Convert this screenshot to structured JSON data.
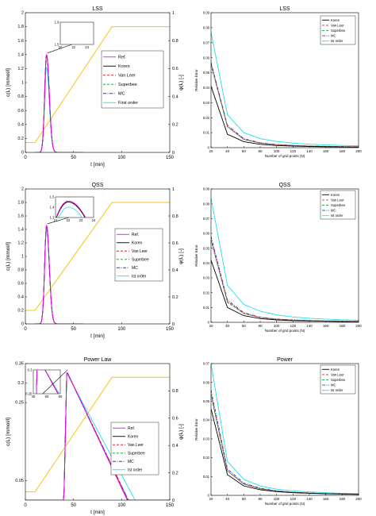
{
  "colors": {
    "ref": "#ff00ff",
    "koren": "#000000",
    "van_leer": "#d62728",
    "superbee": "#28a745",
    "mc": "#1f3fbf",
    "first_order": "#1fe0e8",
    "phi": "#f2c418",
    "axis": "#000000"
  },
  "chart_data": [
    {
      "type": "line",
      "title": "LSS",
      "xlabel": "t [min]",
      "ylabel": "c(L) [mmol/l]",
      "y2label": "φ(L) [-]",
      "xlim": [
        0,
        150
      ],
      "ylim": [
        0,
        2
      ],
      "y2lim": [
        0,
        1
      ],
      "xticks": [
        0,
        50,
        100,
        150
      ],
      "yticks": [
        0,
        0.2,
        0.4,
        0.6,
        0.8,
        1,
        1.2,
        1.4,
        1.6,
        1.8,
        2
      ],
      "y2ticks": [
        0,
        0.2,
        0.4,
        0.6,
        0.8,
        1
      ],
      "legend_placement": "right",
      "peak": {
        "center": 22,
        "width_left": 2.8,
        "width_right": 4.0
      },
      "series": [
        {
          "name": "Ref.",
          "key": "ref",
          "style": "solid",
          "peak": 1.4
        },
        {
          "name": "Koren",
          "key": "koren",
          "style": "solid",
          "peak": 1.39
        },
        {
          "name": "Van Leer",
          "key": "van_leer",
          "style": "dashed",
          "peak": 1.39
        },
        {
          "name": "Superbee",
          "key": "superbee",
          "style": "dashed",
          "peak": 1.4
        },
        {
          "name": "MC",
          "key": "mc",
          "style": "dashdot",
          "peak": 1.39
        },
        {
          "name": "First order",
          "key": "first_order",
          "style": "solid",
          "peak": 1.22
        }
      ],
      "phi": {
        "x": [
          0,
          10,
          90,
          150
        ],
        "y": [
          0.07,
          0.07,
          0.9,
          0.9
        ]
      },
      "inset": {
        "xlim": [
          20,
          25
        ],
        "ylim": [
          1.5,
          1.9
        ],
        "xticks": [
          20,
          22,
          24
        ],
        "yticks": [
          1.5,
          1.9
        ]
      }
    },
    {
      "type": "line",
      "title": "LSS",
      "xlabel": "Number of grid points (N)",
      "ylabel": "Relative Error",
      "xlim": [
        20,
        200
      ],
      "ylim": [
        0,
        0.09
      ],
      "xticks": [
        20,
        40,
        60,
        80,
        100,
        120,
        140,
        160,
        180,
        200
      ],
      "yticks": [
        0,
        0.01,
        0.02,
        0.03,
        0.04,
        0.05,
        0.06,
        0.07,
        0.08,
        0.09
      ],
      "legend_placement": "top-right",
      "x": [
        20,
        40,
        60,
        80,
        100,
        120,
        140,
        160,
        180,
        200
      ],
      "series": [
        {
          "name": "Koren",
          "key": "koren",
          "style": "solid",
          "values": [
            0.041,
            0.009,
            0.004,
            0.0022,
            0.0014,
            0.001,
            0.0008,
            0.0006,
            0.0005,
            0.0004
          ]
        },
        {
          "name": "Van Leer",
          "key": "van_leer",
          "style": "dashed",
          "values": [
            0.056,
            0.014,
            0.0055,
            0.003,
            0.002,
            0.0014,
            0.001,
            0.0008,
            0.0006,
            0.0005
          ]
        },
        {
          "name": "Superbee",
          "key": "superbee",
          "style": "dashed",
          "values": [
            0.055,
            0.014,
            0.0055,
            0.003,
            0.002,
            0.0014,
            0.001,
            0.0008,
            0.0006,
            0.0005
          ]
        },
        {
          "name": "MC",
          "key": "mc",
          "style": "dashdot",
          "values": [
            0.057,
            0.015,
            0.006,
            0.0033,
            0.0021,
            0.0015,
            0.0011,
            0.0009,
            0.0007,
            0.0006
          ]
        },
        {
          "name": "Ist order",
          "key": "first_order",
          "style": "solid",
          "values": [
            0.077,
            0.022,
            0.01,
            0.006,
            0.0042,
            0.003,
            0.0023,
            0.0018,
            0.0015,
            0.0012
          ]
        }
      ]
    },
    {
      "type": "line",
      "title": "QSS",
      "xlabel": "t [min]",
      "ylabel": "c(L) [mmol/l]",
      "y2label": "φ(L) [-]",
      "xlim": [
        0,
        150
      ],
      "ylim": [
        0,
        2
      ],
      "y2lim": [
        0,
        1
      ],
      "xticks": [
        0,
        50,
        100,
        150
      ],
      "yticks": [
        0,
        0.2,
        0.4,
        0.6,
        0.8,
        1,
        1.2,
        1.4,
        1.6,
        1.8,
        2
      ],
      "y2ticks": [
        0,
        0.2,
        0.4,
        0.6,
        0.8,
        1
      ],
      "legend_placement": "right",
      "peak": {
        "center": 22,
        "width_left": 2.8,
        "width_right": 4.0
      },
      "series": [
        {
          "name": "Ref.",
          "key": "ref",
          "style": "solid",
          "peak": 1.46
        },
        {
          "name": "Koren",
          "key": "koren",
          "style": "solid",
          "peak": 1.45
        },
        {
          "name": "Van Leer",
          "key": "van_leer",
          "style": "dashed",
          "peak": 1.45
        },
        {
          "name": "Superbee",
          "key": "superbee",
          "style": "dashed",
          "peak": 1.46
        },
        {
          "name": "MC",
          "key": "mc",
          "style": "dashdot",
          "peak": 1.45
        },
        {
          "name": "Ist order",
          "key": "first_order",
          "style": "solid",
          "peak": 1.4
        }
      ],
      "phi": {
        "x": [
          0,
          10,
          90,
          150
        ],
        "y": [
          0.1,
          0.1,
          0.9,
          0.9
        ]
      },
      "inset": {
        "xlim": [
          21,
          24
        ],
        "ylim": [
          1.3,
          1.5
        ],
        "xticks": [
          21,
          22,
          23,
          24
        ],
        "yticks": [
          1.3,
          1.4,
          1.5
        ]
      }
    },
    {
      "type": "line",
      "title": "QSS",
      "xlabel": "Number of grid points (N)",
      "ylabel": "Relative Error",
      "xlim": [
        20,
        200
      ],
      "ylim": [
        0,
        0.09
      ],
      "xticks": [
        20,
        40,
        60,
        80,
        100,
        120,
        140,
        160,
        180,
        200
      ],
      "yticks": [
        0,
        0.01,
        0.02,
        0.03,
        0.04,
        0.05,
        0.06,
        0.07,
        0.08,
        0.09
      ],
      "legend_placement": "top-right",
      "x": [
        20,
        40,
        60,
        80,
        100,
        120,
        140,
        160,
        180,
        200
      ],
      "series": [
        {
          "name": "Koren",
          "key": "koren",
          "style": "solid",
          "values": [
            0.042,
            0.01,
            0.0045,
            0.0025,
            0.0016,
            0.0011,
            0.0009,
            0.0007,
            0.0005,
            0.0004
          ]
        },
        {
          "name": "Van Leer",
          "key": "van_leer",
          "style": "dashed",
          "values": [
            0.056,
            0.014,
            0.006,
            0.0033,
            0.0021,
            0.0015,
            0.0011,
            0.0008,
            0.0007,
            0.0005
          ]
        },
        {
          "name": "Superbee",
          "key": "superbee",
          "style": "dashed",
          "values": [
            0.055,
            0.0135,
            0.006,
            0.0033,
            0.0021,
            0.0015,
            0.0011,
            0.0008,
            0.0007,
            0.0005
          ]
        },
        {
          "name": "MC",
          "key": "mc",
          "style": "dashdot",
          "values": [
            0.058,
            0.015,
            0.0065,
            0.0035,
            0.0022,
            0.0016,
            0.0012,
            0.0009,
            0.0007,
            0.0006
          ]
        },
        {
          "name": "Ist order",
          "key": "first_order",
          "style": "solid",
          "values": [
            0.084,
            0.025,
            0.012,
            0.0075,
            0.005,
            0.0036,
            0.0027,
            0.0021,
            0.0017,
            0.0014
          ]
        }
      ]
    },
    {
      "type": "line",
      "title": "Power Law",
      "xlabel": "t [min]",
      "ylabel": "c(L) [mmol/l]",
      "y2label": "φ(L) [-]",
      "xlim": [
        0,
        150
      ],
      "ylim": [
        0,
        0.35
      ],
      "y2lim": [
        0,
        1
      ],
      "xticks": [
        0,
        50,
        100,
        150
      ],
      "yticks": [
        0.05,
        0.25,
        0.3,
        0.35
      ],
      "y2ticks": [
        0,
        0.2,
        0.4,
        0.6,
        0.8
      ],
      "legend_placement": "right",
      "ramp": {
        "start": 40,
        "peak_t": 43
      },
      "series": [
        {
          "name": "Ref.",
          "key": "ref",
          "style": "solid",
          "peak": 0.33,
          "end": 106
        },
        {
          "name": "Koren",
          "key": "koren",
          "style": "solid",
          "peak": 0.33,
          "end": 106
        },
        {
          "name": "Van Leer",
          "key": "van_leer",
          "style": "dashed",
          "peak": 0.33,
          "end": 107
        },
        {
          "name": "Superbee",
          "key": "superbee",
          "style": "dashed",
          "peak": 0.33,
          "end": 106
        },
        {
          "name": "MC",
          "key": "mc",
          "style": "dashdot",
          "peak": 0.33,
          "end": 107
        },
        {
          "name": "Ist order",
          "key": "first_order",
          "style": "solid",
          "peak": 0.325,
          "end": 114
        }
      ],
      "phi": {
        "x": [
          0,
          10,
          90,
          150
        ],
        "y": [
          0.06,
          0.06,
          0.9,
          0.9
        ]
      },
      "inset": {
        "xlim": [
          40,
          60
        ],
        "ylim": [
          0.25,
          0.3
        ],
        "xticks": [
          40,
          50,
          60
        ],
        "yticks": [
          0.25,
          0.3
        ]
      }
    },
    {
      "type": "line",
      "title": "Power",
      "xlabel": "Number of grid points (N)",
      "ylabel": "Relative Error",
      "xlim": [
        20,
        200
      ],
      "ylim": [
        0,
        0.07
      ],
      "xticks": [
        20,
        40,
        60,
        80,
        100,
        120,
        140,
        160,
        180,
        200
      ],
      "yticks": [
        0,
        0.01,
        0.02,
        0.03,
        0.04,
        0.05,
        0.06,
        0.07
      ],
      "legend_placement": "top-right",
      "x": [
        20,
        40,
        60,
        80,
        100,
        120,
        140,
        160,
        180,
        200
      ],
      "series": [
        {
          "name": "Koren",
          "key": "koren",
          "style": "solid",
          "values": [
            0.046,
            0.011,
            0.005,
            0.003,
            0.002,
            0.0014,
            0.0011,
            0.0008,
            0.0007,
            0.0005
          ]
        },
        {
          "name": "Van Leer",
          "key": "van_leer",
          "style": "dashed",
          "values": [
            0.054,
            0.013,
            0.006,
            0.0035,
            0.0022,
            0.0016,
            0.0012,
            0.0009,
            0.0007,
            0.0006
          ]
        },
        {
          "name": "Superbee",
          "key": "superbee",
          "style": "dashed",
          "values": [
            0.053,
            0.013,
            0.006,
            0.0035,
            0.0022,
            0.0016,
            0.0012,
            0.0009,
            0.0007,
            0.0006
          ]
        },
        {
          "name": "MC",
          "key": "mc",
          "style": "dashdot",
          "values": [
            0.056,
            0.014,
            0.0065,
            0.0038,
            0.0024,
            0.0017,
            0.0013,
            0.001,
            0.0008,
            0.0006
          ]
        },
        {
          "name": "Ist order",
          "key": "first_order",
          "style": "solid",
          "values": [
            0.07,
            0.018,
            0.0085,
            0.005,
            0.0033,
            0.0024,
            0.0018,
            0.0014,
            0.0011,
            0.0009
          ]
        }
      ]
    }
  ]
}
